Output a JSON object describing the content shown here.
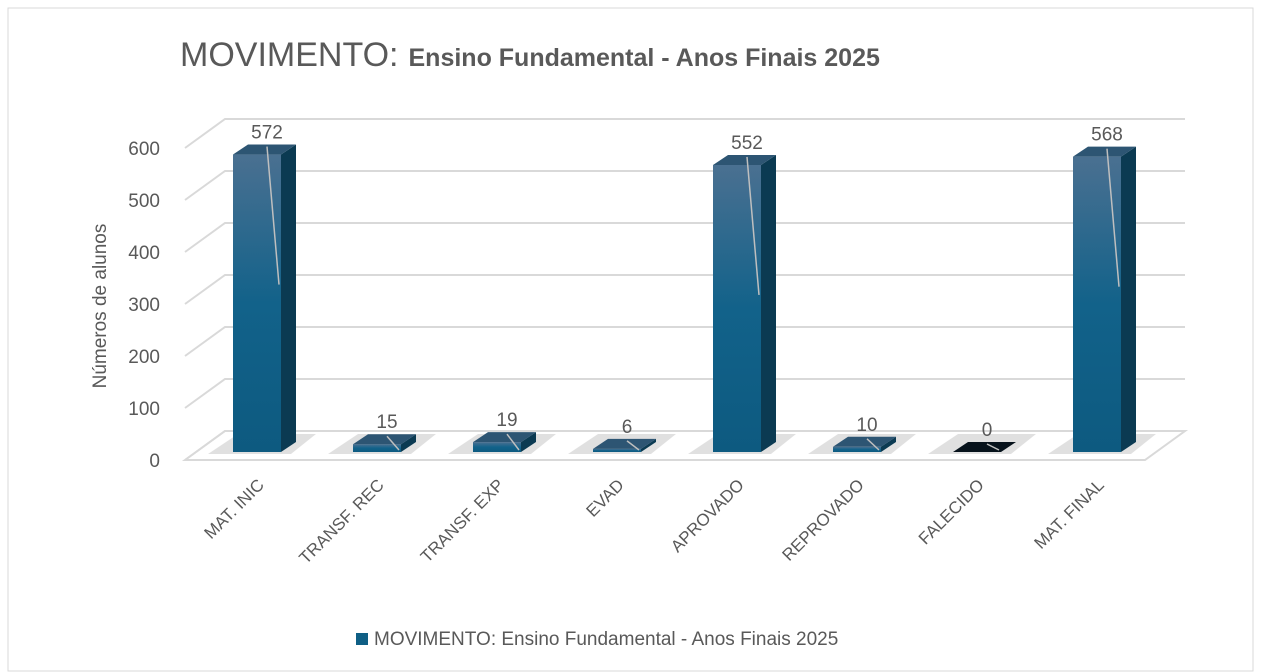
{
  "chart_data": {
    "type": "bar3d",
    "title": "MOVIMENTO:",
    "subtitle": "Ensino Fundamental - Anos Finais 2025",
    "y_label": "Números de alunos",
    "categories": [
      "MAT. INIC",
      "TRANSF. REC",
      "TRANSF. EXP",
      "EVAD",
      "APROVADO",
      "REPROVADO",
      "FALECIDO",
      "MAT. FINAL"
    ],
    "series": [
      {
        "name": "MOVIMENTO: Ensino Fundamental - Anos Finais 2025",
        "color": "#0f5f85",
        "values": [
          572,
          15,
          19,
          6,
          552,
          10,
          0,
          568
        ]
      }
    ],
    "ylim": [
      0,
      600
    ],
    "yticks": [
      0,
      100,
      200,
      300,
      400,
      500,
      600
    ],
    "grid": true,
    "legend": "bottom"
  }
}
